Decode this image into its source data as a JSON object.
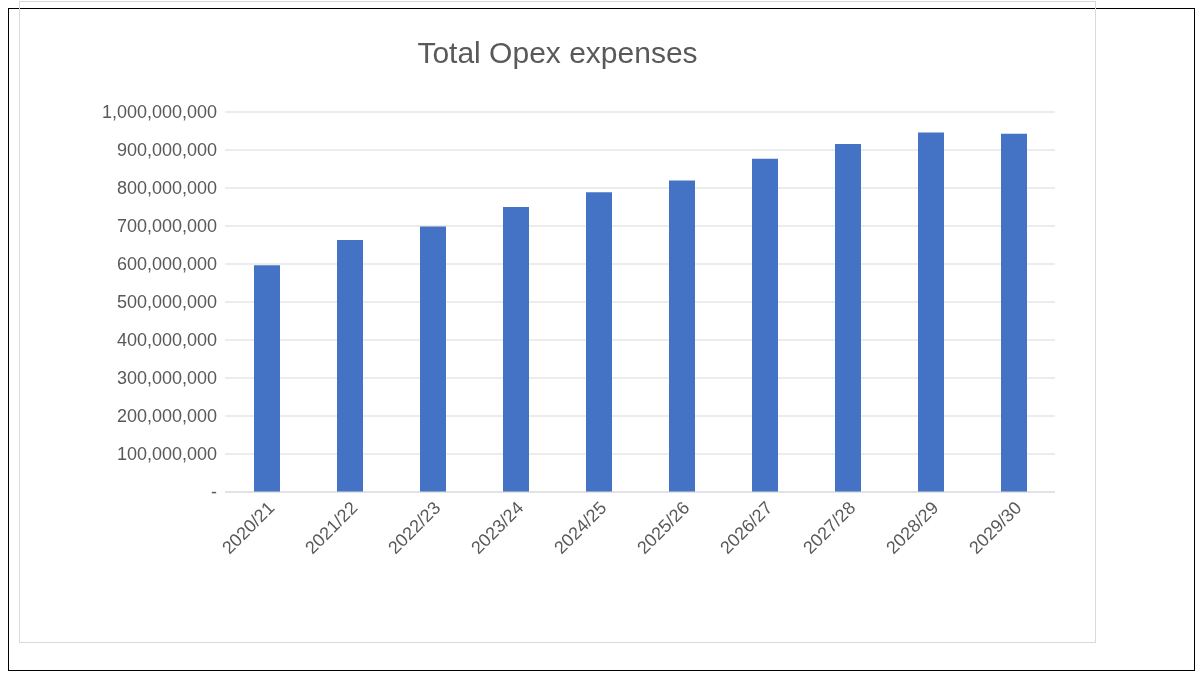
{
  "chart_data": {
    "type": "bar",
    "title": "Total Opex expenses",
    "categories": [
      "2020/21",
      "2021/22",
      "2022/23",
      "2023/24",
      "2024/25",
      "2025/26",
      "2026/27",
      "2027/28",
      "2028/29",
      "2029/30"
    ],
    "values": [
      597000000,
      663000000,
      699000000,
      750000000,
      789000000,
      820000000,
      877000000,
      916000000,
      946000000,
      943000000
    ],
    "color": "#4472c4",
    "ylim": [
      0,
      1000000000
    ],
    "yticks": [
      {
        "value": 0,
        "label": "-"
      },
      {
        "value": 100000000,
        "label": "100,000,000"
      },
      {
        "value": 200000000,
        "label": "200,000,000"
      },
      {
        "value": 300000000,
        "label": "300,000,000"
      },
      {
        "value": 400000000,
        "label": "400,000,000"
      },
      {
        "value": 500000000,
        "label": "500,000,000"
      },
      {
        "value": 600000000,
        "label": "600,000,000"
      },
      {
        "value": 700000000,
        "label": "700,000,000"
      },
      {
        "value": 800000000,
        "label": "800,000,000"
      },
      {
        "value": 900000000,
        "label": "900,000,000"
      },
      {
        "value": 1000000000,
        "label": "1,000,000,000"
      }
    ],
    "grid": "y"
  }
}
